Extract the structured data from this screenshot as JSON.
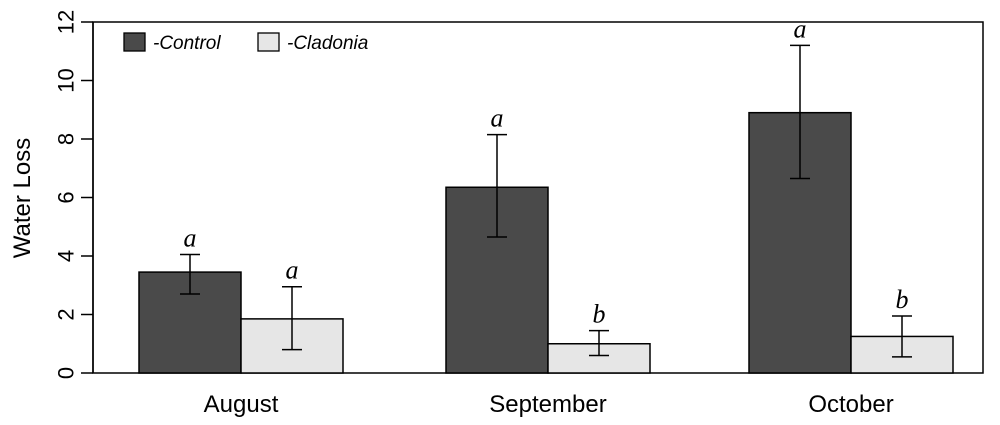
{
  "chart_data": {
    "type": "bar",
    "categories": [
      "August",
      "September",
      "October"
    ],
    "ylabel": "Water Loss",
    "ylim": [
      0,
      12
    ],
    "yticks": [
      0,
      2,
      4,
      6,
      8,
      10,
      12
    ],
    "grid": false,
    "legend_position": "top-left",
    "series": [
      {
        "name": "-Control",
        "color": "#4a4a4a",
        "values": [
          3.45,
          6.35,
          8.9
        ],
        "error_low": [
          2.7,
          4.65,
          6.65
        ],
        "error_high": [
          4.05,
          8.15,
          11.2
        ],
        "significance": [
          "a",
          "a",
          "a"
        ]
      },
      {
        "name": "-Cladonia",
        "color": "#e6e6e6",
        "values": [
          1.85,
          1.0,
          1.25
        ],
        "error_low": [
          0.8,
          0.6,
          0.55
        ],
        "error_high": [
          2.95,
          1.45,
          1.95
        ],
        "significance": [
          "a",
          "b",
          "b"
        ]
      }
    ]
  }
}
